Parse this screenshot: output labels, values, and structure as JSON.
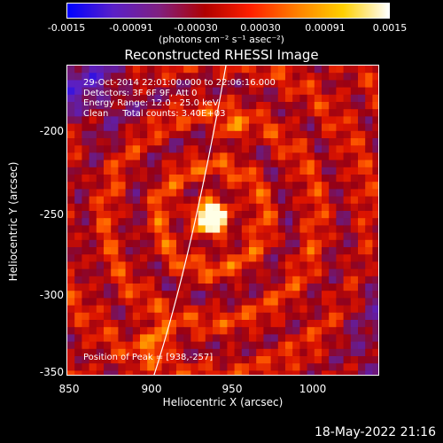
{
  "colorbar": {
    "ticks": [
      "-0.0015",
      "-0.00091",
      "-0.00030",
      "0.00030",
      "0.00091",
      "0.0015"
    ],
    "units": "(photons cm⁻² s⁻¹ asec⁻²)",
    "colors": [
      "#0000ff",
      "#5a20c8",
      "#802080",
      "#b00000",
      "#ff2000",
      "#ff8000",
      "#ffd000",
      "#ffffff"
    ]
  },
  "title": "Reconstructed RHESSI Image",
  "info": {
    "time": "29-Oct-2014 22:01:00.000 to 22:06:16.000",
    "detectors": "Detectors: 3F 6F 9F, Att 0",
    "energy": "Energy Range: 12.0 - 25.0 keV",
    "clean": "Clean     Total counts: 3.40E+03",
    "peak": "Position of Peak = [938,-257]"
  },
  "axes": {
    "xlabel": "Heliocentric X (arcsec)",
    "ylabel": "Heliocentric Y (arcsec)",
    "xticks": [
      "850",
      "900",
      "950",
      "1000"
    ],
    "yticks": [
      "-200",
      "-250",
      "-300",
      "-350"
    ],
    "xlim": [
      850,
      1040
    ],
    "ylim": [
      -352,
      -165
    ]
  },
  "image": {
    "peak_x": 938,
    "peak_y": -257
  },
  "footer": {
    "datestamp": "18-May-2022 21:16"
  }
}
